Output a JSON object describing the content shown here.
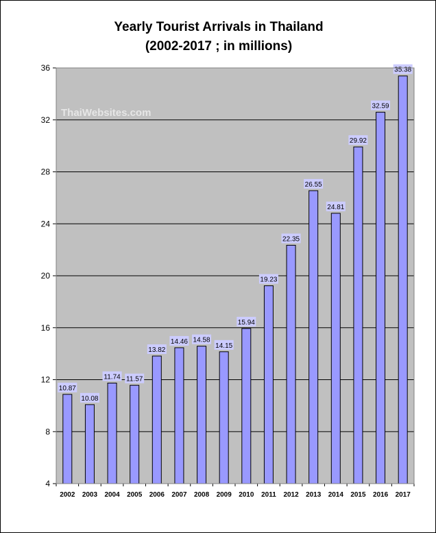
{
  "chart_data": {
    "type": "bar",
    "title": "Yearly Tourist Arrivals in Thailand",
    "subtitle": "(2002-2017 ; in millions)",
    "watermark": "ThaiWebsites.com",
    "categories": [
      "2002",
      "2003",
      "2004",
      "2005",
      "2006",
      "2007",
      "2008",
      "2009",
      "2010",
      "2011",
      "2012",
      "2013",
      "2014",
      "2015",
      "2016",
      "2017"
    ],
    "values": [
      10.87,
      10.08,
      11.74,
      11.57,
      13.82,
      14.46,
      14.58,
      14.15,
      15.94,
      19.23,
      22.35,
      26.55,
      24.81,
      29.92,
      32.59,
      35.38
    ],
    "value_labels": [
      "10.87",
      "10.08",
      "11.74",
      "11.57",
      "13.82",
      "14.46",
      "14.58",
      "14.15",
      "15.94",
      "19.23",
      "22.35",
      "26.55",
      "24.81",
      "29.92",
      "32.59",
      "35.38"
    ],
    "ylim": [
      4,
      36
    ],
    "yticks": [
      4,
      8,
      12,
      16,
      20,
      24,
      28,
      32,
      36
    ],
    "xlabel": "",
    "ylabel": "",
    "grid": true,
    "colors": {
      "bar_fill": "#9999ff",
      "bar_stroke": "#000000",
      "plot_background": "#c0c0c0",
      "label_background": "#ccccff",
      "gridline": "#000000"
    }
  }
}
